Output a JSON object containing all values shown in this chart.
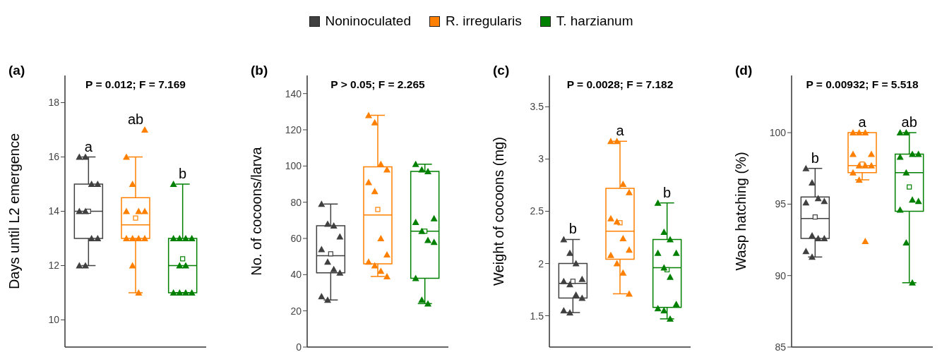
{
  "chart_data": [
    {
      "type": "box",
      "title": "(a)",
      "subtitle": "P = 0.012; F = 7.169",
      "ylabel": "Days until L2 emergence",
      "categories": [
        null,
        null,
        null
      ],
      "ylim": [
        9,
        19
      ],
      "yticks": [
        10,
        12,
        14,
        16,
        18
      ],
      "tick_labels": "y",
      "legend": "top",
      "annotations": [
        "a",
        "ab",
        "b"
      ],
      "series": [
        {
          "name": "Noninoculated",
          "type": "box",
          "color": "#404040",
          "boxes": [
            {
              "low": 12,
              "q1": 13,
              "median": 14,
              "q3": 15,
              "high": 16,
              "mean": 14
            },
            null,
            null
          ]
        },
        {
          "name": "R. irregularis",
          "type": "box",
          "color": "#ff8000",
          "boxes": [
            null,
            {
              "low": 11,
              "q1": 13,
              "median": 13.5,
              "q3": 14.5,
              "high": 16,
              "mean": 13.75,
              "outliers": [
                17
              ]
            },
            null
          ]
        },
        {
          "name": "T. harzianum",
          "type": "box",
          "color": "#008000",
          "boxes": [
            null,
            null,
            {
              "low": 11,
              "q1": 11,
              "median": 12,
              "q3": 13,
              "high": 15,
              "mean": 12.25
            }
          ]
        },
        {
          "type": "scatter",
          "marker": "triangle",
          "colors": [
            "#404040",
            "#ff8000",
            "#008000"
          ],
          "values": [
            16,
            16,
            15
          ]
        },
        {
          "type": "scatter",
          "marker": "triangle",
          "colors": [
            "#404040",
            "#ff8000",
            "#008000"
          ],
          "values": [
            16,
            15,
            13
          ]
        },
        {
          "type": "scatter",
          "marker": "triangle",
          "colors": [
            "#404040",
            "#ff8000",
            "#008000"
          ],
          "values": [
            15,
            14,
            13
          ]
        },
        {
          "type": "scatter",
          "marker": "triangle",
          "colors": [
            "#404040",
            "#ff8000",
            "#008000"
          ],
          "values": [
            15,
            14,
            13
          ]
        },
        {
          "type": "scatter",
          "marker": "triangle",
          "colors": [
            "#404040",
            "#ff8000",
            "#008000"
          ],
          "values": [
            14,
            14,
            13
          ]
        },
        {
          "type": "scatter",
          "marker": "triangle",
          "colors": [
            "#404040",
            "#ff8000",
            "#008000"
          ],
          "values": [
            14,
            13,
            12
          ]
        },
        {
          "type": "scatter",
          "marker": "triangle",
          "colors": [
            "#404040",
            "#ff8000",
            "#008000"
          ],
          "values": [
            13,
            13,
            12
          ]
        },
        {
          "type": "scatter",
          "marker": "triangle",
          "colors": [
            "#404040",
            "#ff8000",
            "#008000"
          ],
          "values": [
            13,
            13,
            11
          ]
        },
        {
          "type": "scatter",
          "marker": "triangle",
          "colors": [
            "#404040",
            "#ff8000",
            "#008000"
          ],
          "values": [
            12,
            13,
            11
          ]
        },
        {
          "type": "scatter",
          "marker": "triangle",
          "colors": [
            "#404040",
            "#ff8000",
            "#008000"
          ],
          "values": [
            12,
            12,
            11
          ]
        },
        {
          "type": "scatter",
          "marker": "triangle",
          "colors": [
            "#404040",
            "#ff8000",
            "#008000"
          ],
          "values": [
            null,
            11,
            11
          ]
        }
      ]
    },
    {
      "type": "box",
      "title": "(b)",
      "subtitle": "P > 0.05; F = 2.265",
      "ylabel": "No. of cocoons/larva",
      "categories": [
        null,
        null,
        null
      ],
      "ylim": [
        0,
        150
      ],
      "yticks": [
        0,
        20,
        40,
        60,
        80,
        100,
        120,
        140
      ],
      "tick_labels": "y",
      "series": [
        {
          "type": "box",
          "color": "#404040",
          "boxes": [
            {
              "low": 26,
              "q1": 41,
              "median": 50.5,
              "q3": 67,
              "high": 79,
              "mean": 51.5
            },
            null,
            null
          ]
        },
        {
          "type": "box",
          "color": "#ff8000",
          "boxes": [
            null,
            {
              "low": 39,
              "q1": 46,
              "median": 73,
              "q3": 99.5,
              "high": 128,
              "mean": 76
            },
            null
          ]
        },
        {
          "type": "box",
          "color": "#008000",
          "boxes": [
            null,
            null,
            {
              "low": 24,
              "q1": 38,
              "median": 64,
              "q3": 97,
              "high": 101,
              "mean": 64
            }
          ]
        },
        {
          "type": "scatter",
          "marker": "triangle",
          "colors": [
            "#404040",
            "#ff8000",
            "#008000"
          ],
          "values": [
            79,
            128,
            101
          ]
        },
        {
          "type": "scatter",
          "marker": "triangle",
          "colors": [
            "#404040",
            "#ff8000",
            "#008000"
          ],
          "values": [
            68,
            124,
            98
          ]
        },
        {
          "type": "scatter",
          "marker": "triangle",
          "colors": [
            "#404040",
            "#ff8000",
            "#008000"
          ],
          "values": [
            67,
            101,
            97
          ]
        },
        {
          "type": "scatter",
          "marker": "triangle",
          "colors": [
            "#404040",
            "#ff8000",
            "#008000"
          ],
          "values": [
            61,
            98,
            71
          ]
        },
        {
          "type": "scatter",
          "marker": "triangle",
          "colors": [
            "#404040",
            "#ff8000",
            "#008000"
          ],
          "values": [
            54,
            91,
            69
          ]
        },
        {
          "type": "scatter",
          "marker": "triangle",
          "colors": [
            "#404040",
            "#ff8000",
            "#008000"
          ],
          "values": [
            47,
            86,
            64
          ]
        },
        {
          "type": "scatter",
          "marker": "triangle",
          "colors": [
            "#404040",
            "#ff8000",
            "#008000"
          ],
          "values": [
            43,
            60,
            59
          ]
        },
        {
          "type": "scatter",
          "marker": "triangle",
          "colors": [
            "#404040",
            "#ff8000",
            "#008000"
          ],
          "values": [
            41,
            51,
            58
          ]
        },
        {
          "type": "scatter",
          "marker": "triangle",
          "colors": [
            "#404040",
            "#ff8000",
            "#008000"
          ],
          "values": [
            28,
            47,
            38
          ]
        },
        {
          "type": "scatter",
          "marker": "triangle",
          "colors": [
            "#404040",
            "#ff8000",
            "#008000"
          ],
          "values": [
            26,
            45,
            26
          ]
        },
        {
          "type": "scatter",
          "marker": "triangle",
          "colors": [
            "#404040",
            "#ff8000",
            "#008000"
          ],
          "values": [
            null,
            42,
            24
          ]
        },
        {
          "type": "scatter",
          "marker": "triangle",
          "colors": [
            "#404040",
            "#ff8000",
            "#008000"
          ],
          "values": [
            null,
            39,
            null
          ]
        }
      ]
    },
    {
      "type": "box",
      "title": "(c)",
      "subtitle": "P = 0.0028; F = 7.182",
      "ylabel": "Weight of cocoons (mg)",
      "categories": [
        null,
        null,
        null
      ],
      "ylim": [
        1.2,
        3.8
      ],
      "yticks": [
        1.5,
        2,
        2.5,
        3,
        3.5
      ],
      "tick_labels": "y",
      "annotations": [
        "b",
        "a",
        "b"
      ],
      "series": [
        {
          "type": "box",
          "color": "#404040",
          "boxes": [
            {
              "low": 1.53,
              "q1": 1.67,
              "median": 1.81,
              "q3": 2,
              "high": 2.23,
              "mean": 1.83
            },
            null,
            null
          ]
        },
        {
          "type": "box",
          "color": "#ff8000",
          "boxes": [
            null,
            {
              "low": 1.71,
              "q1": 2.04,
              "median": 2.31,
              "q3": 2.72,
              "high": 3.17,
              "mean": 2.39
            },
            null
          ]
        },
        {
          "type": "box",
          "color": "#008000",
          "boxes": [
            null,
            null,
            {
              "low": 1.47,
              "q1": 1.58,
              "median": 1.96,
              "q3": 2.23,
              "high": 2.58,
              "mean": 1.94
            }
          ]
        },
        {
          "type": "scatter",
          "marker": "triangle",
          "colors": [
            "#404040",
            "#ff8000",
            "#008000"
          ],
          "values": [
            2.23,
            3.17,
            2.58
          ]
        },
        {
          "type": "scatter",
          "marker": "triangle",
          "colors": [
            "#404040",
            "#ff8000",
            "#008000"
          ],
          "values": [
            2.1,
            3.17,
            2.3
          ]
        },
        {
          "type": "scatter",
          "marker": "triangle",
          "colors": [
            "#404040",
            "#ff8000",
            "#008000"
          ],
          "values": [
            2,
            2.76,
            2.23
          ]
        },
        {
          "type": "scatter",
          "marker": "triangle",
          "colors": [
            "#404040",
            "#ff8000",
            "#008000"
          ],
          "values": [
            1.85,
            2.68,
            2.1
          ]
        },
        {
          "type": "scatter",
          "marker": "triangle",
          "colors": [
            "#404040",
            "#ff8000",
            "#008000"
          ],
          "values": [
            1.83,
            2.43,
            2.1
          ]
        },
        {
          "type": "scatter",
          "marker": "triangle",
          "colors": [
            "#404040",
            "#ff8000",
            "#008000"
          ],
          "values": [
            1.8,
            2.4,
            1.96
          ]
        },
        {
          "type": "scatter",
          "marker": "triangle",
          "colors": [
            "#404040",
            "#ff8000",
            "#008000"
          ],
          "values": [
            1.7,
            2.24,
            1.87
          ]
        },
        {
          "type": "scatter",
          "marker": "triangle",
          "colors": [
            "#404040",
            "#ff8000",
            "#008000"
          ],
          "values": [
            1.67,
            2.13,
            1.61
          ]
        },
        {
          "type": "scatter",
          "marker": "triangle",
          "colors": [
            "#404040",
            "#ff8000",
            "#008000"
          ],
          "values": [
            1.55,
            2.08,
            1.57
          ]
        },
        {
          "type": "scatter",
          "marker": "triangle",
          "colors": [
            "#404040",
            "#ff8000",
            "#008000"
          ],
          "values": [
            1.53,
            2,
            1.55
          ]
        },
        {
          "type": "scatter",
          "marker": "triangle",
          "colors": [
            "#404040",
            "#ff8000",
            "#008000"
          ],
          "values": [
            null,
            1.91,
            1.47
          ]
        },
        {
          "type": "scatter",
          "marker": "triangle",
          "colors": [
            "#404040",
            "#ff8000",
            "#008000"
          ],
          "values": [
            null,
            1.71,
            null
          ]
        }
      ]
    },
    {
      "type": "box",
      "title": "(d)",
      "subtitle": "P = 0.00932; F = 5.518",
      "ylabel": "Wasp hatching (%)",
      "categories": [
        null,
        null,
        null
      ],
      "ylim": [
        85,
        104
      ],
      "yticks": [
        85,
        90,
        95,
        100
      ],
      "tick_labels": "y",
      "annotations": [
        "b",
        "a",
        "ab"
      ],
      "series": [
        {
          "type": "box",
          "color": "#404040",
          "boxes": [
            {
              "low": 91.3,
              "q1": 92.6,
              "median": 94,
              "q3": 95.5,
              "high": 97.5,
              "mean": 94.1
            },
            null,
            null
          ]
        },
        {
          "type": "box",
          "color": "#ff8000",
          "boxes": [
            null,
            {
              "low": 96.7,
              "q1": 97.2,
              "median": 97.7,
              "q3": 100,
              "high": 100,
              "mean": 97.8,
              "outliers": [
                92.4
              ]
            },
            null
          ]
        },
        {
          "type": "box",
          "color": "#008000",
          "boxes": [
            null,
            null,
            {
              "low": 89.5,
              "q1": 94.5,
              "median": 97.2,
              "q3": 98.5,
              "high": 100,
              "mean": 96.2
            }
          ]
        },
        {
          "type": "scatter",
          "marker": "triangle",
          "colors": [
            "#404040",
            "#ff8000",
            "#008000"
          ],
          "values": [
            97.5,
            100,
            100
          ]
        },
        {
          "type": "scatter",
          "marker": "triangle",
          "colors": [
            "#404040",
            "#ff8000",
            "#008000"
          ],
          "values": [
            96.5,
            100,
            100
          ]
        },
        {
          "type": "scatter",
          "marker": "triangle",
          "colors": [
            "#404040",
            "#ff8000",
            "#008000"
          ],
          "values": [
            95.4,
            100,
            98.5
          ]
        },
        {
          "type": "scatter",
          "marker": "triangle",
          "colors": [
            "#404040",
            "#ff8000",
            "#008000"
          ],
          "values": [
            95.2,
            98.5,
            98.5
          ]
        },
        {
          "type": "scatter",
          "marker": "triangle",
          "colors": [
            "#404040",
            "#ff8000",
            "#008000"
          ],
          "values": [
            95.1,
            98.5,
            98.3
          ]
        },
        {
          "type": "scatter",
          "marker": "triangle",
          "colors": [
            "#404040",
            "#ff8000",
            "#008000"
          ],
          "values": [
            92.8,
            97.7,
            97.2
          ]
        },
        {
          "type": "scatter",
          "marker": "triangle",
          "colors": [
            "#404040",
            "#ff8000",
            "#008000"
          ],
          "values": [
            92.6,
            97.7,
            95.3
          ]
        },
        {
          "type": "scatter",
          "marker": "triangle",
          "colors": [
            "#404040",
            "#ff8000",
            "#008000"
          ],
          "values": [
            92.6,
            97.7,
            95.2
          ]
        },
        {
          "type": "scatter",
          "marker": "triangle",
          "colors": [
            "#404040",
            "#ff8000",
            "#008000"
          ],
          "values": [
            91.7,
            97.2,
            94.6
          ]
        },
        {
          "type": "scatter",
          "marker": "triangle",
          "colors": [
            "#404040",
            "#ff8000",
            "#008000"
          ],
          "values": [
            91.3,
            96.7,
            92.3
          ]
        },
        {
          "type": "scatter",
          "marker": "triangle",
          "colors": [
            "#404040",
            "#ff8000",
            "#008000"
          ],
          "values": [
            null,
            null,
            89.5
          ]
        }
      ]
    }
  ]
}
